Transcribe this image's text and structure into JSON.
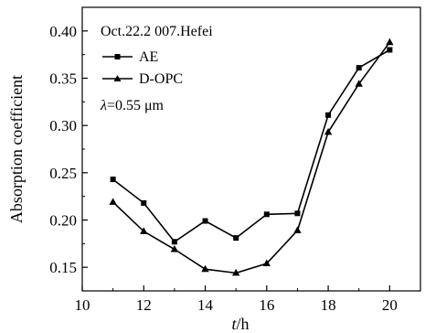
{
  "chart_data": {
    "type": "line",
    "title": "",
    "xlabel": "t/h",
    "ylabel": "Absorption coefficient",
    "xlim": [
      10,
      21
    ],
    "ylim": [
      0.125,
      0.425
    ],
    "xticks": [
      10,
      12,
      14,
      16,
      18,
      20
    ],
    "yticks": [
      0.15,
      0.2,
      0.25,
      0.3,
      0.35,
      0.4
    ],
    "x": [
      11,
      12,
      13,
      14,
      15,
      16,
      17,
      18,
      19,
      20
    ],
    "series": [
      {
        "name": "AE",
        "marker": "square",
        "color": "#000000",
        "values": [
          0.243,
          0.218,
          0.177,
          0.199,
          0.181,
          0.206,
          0.207,
          0.311,
          0.361,
          0.38
        ]
      },
      {
        "name": "D-OPC",
        "marker": "triangle",
        "color": "#000000",
        "values": [
          0.219,
          0.188,
          0.169,
          0.148,
          0.144,
          0.154,
          0.189,
          0.293,
          0.344,
          0.388
        ]
      }
    ],
    "annotations": [
      "Oct.22.2 007.Hefei",
      "λ=0.55 μm"
    ],
    "legend_position": "top-left",
    "grid": false
  }
}
